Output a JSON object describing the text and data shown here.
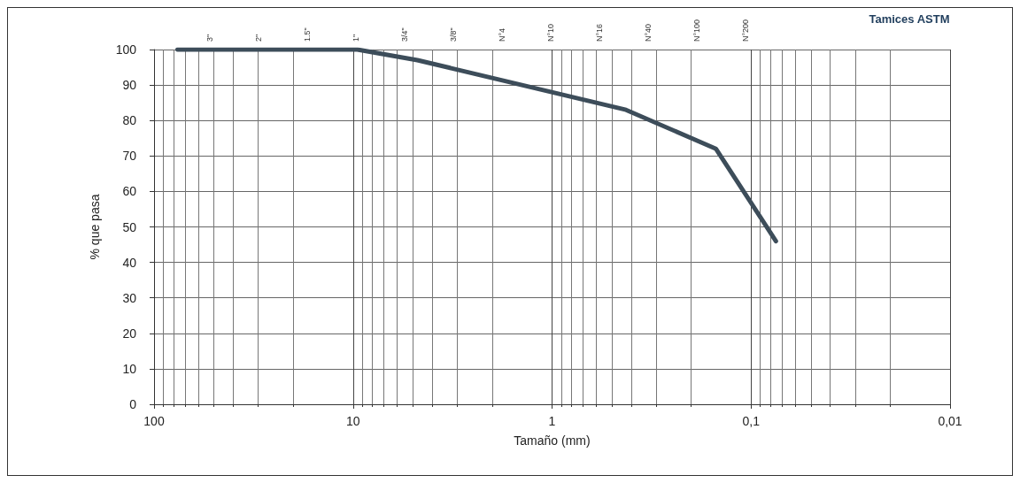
{
  "chart_data": {
    "type": "line",
    "xlabel": "Tamaño (mm)",
    "ylabel": "% que pasa",
    "x2label": "Tamices ASTM",
    "x": [
      76.2,
      50.8,
      38.1,
      25.4,
      19.05,
      9.525,
      4.75,
      2,
      0.425,
      0.15,
      0.075
    ],
    "series": [
      {
        "color": "#3d4d5a",
        "values": [
          100,
          100,
          100,
          100,
          100,
          100,
          97,
          92,
          83,
          72,
          46
        ]
      }
    ],
    "log": "x",
    "xlim": [
      100,
      0.01
    ],
    "xticks": [
      100,
      10,
      1,
      {
        "value": 0.1,
        "label": "0,1"
      },
      {
        "value": 0.01,
        "label": "0,01"
      }
    ],
    "annotations": [
      "3\"",
      "2\"",
      "1.5\"",
      "1\"",
      "3/4\"",
      "3/8\"",
      "N°4",
      "N°10",
      "N°16",
      "N°40",
      "N°100",
      "N°200"
    ],
    "ylim": [
      0,
      100
    ],
    "yticks": [
      0,
      10,
      20,
      30,
      40,
      50,
      60,
      70,
      80,
      90,
      100
    ],
    "grid": true,
    "marker": "none",
    "line_style": "solid"
  }
}
